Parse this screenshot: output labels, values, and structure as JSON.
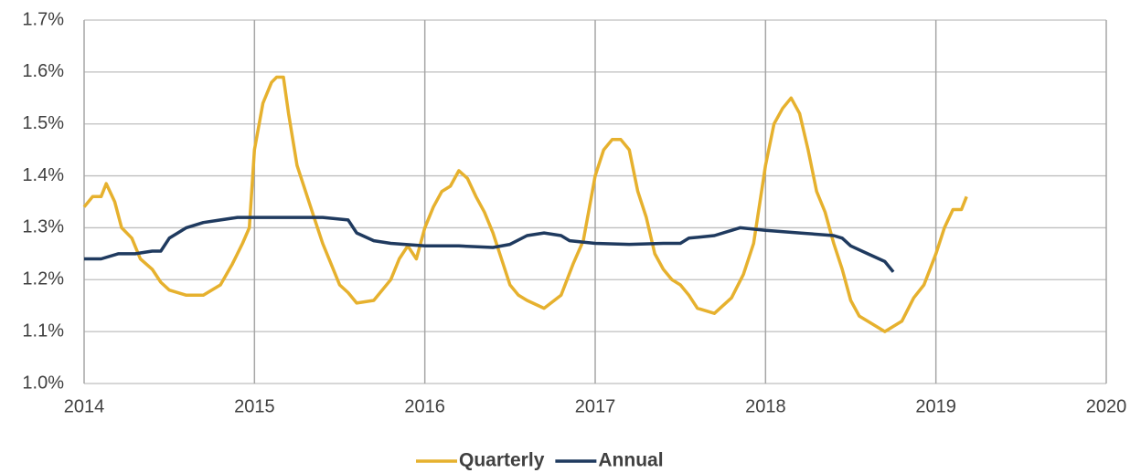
{
  "chart_data": {
    "type": "line",
    "xlim": [
      2014,
      2020
    ],
    "xticks": [
      2014,
      2015,
      2016,
      2017,
      2018,
      2019,
      2020
    ],
    "ylim": [
      1.0,
      1.7
    ],
    "yticks": [
      {
        "value": 1.0,
        "label": "1.0%"
      },
      {
        "value": 1.1,
        "label": "1.1%"
      },
      {
        "value": 1.2,
        "label": "1.2%"
      },
      {
        "value": 1.3,
        "label": "1.3%"
      },
      {
        "value": 1.4,
        "label": "1.4%"
      },
      {
        "value": 1.5,
        "label": "1.5%"
      },
      {
        "value": 1.6,
        "label": "1.6%"
      },
      {
        "value": 1.7,
        "label": "1.7%"
      }
    ],
    "grid": true,
    "legend": "bottom",
    "series": [
      {
        "name": "Quarterly",
        "color": "#e6b12e",
        "x": [
          2014.0,
          2014.05,
          2014.1,
          2014.13,
          2014.18,
          2014.22,
          2014.28,
          2014.33,
          2014.4,
          2014.45,
          2014.5,
          2014.6,
          2014.7,
          2014.8,
          2014.87,
          2014.93,
          2014.97,
          2015.0,
          2015.05,
          2015.1,
          2015.13,
          2015.17,
          2015.2,
          2015.25,
          2015.3,
          2015.35,
          2015.4,
          2015.45,
          2015.5,
          2015.55,
          2015.6,
          2015.7,
          2015.8,
          2015.85,
          2015.9,
          2015.95,
          2016.0,
          2016.05,
          2016.1,
          2016.15,
          2016.2,
          2016.25,
          2016.3,
          2016.35,
          2016.4,
          2016.45,
          2016.5,
          2016.55,
          2016.6,
          2016.7,
          2016.8,
          2016.87,
          2016.93,
          2017.0,
          2017.05,
          2017.1,
          2017.15,
          2017.2,
          2017.25,
          2017.3,
          2017.35,
          2017.4,
          2017.45,
          2017.5,
          2017.55,
          2017.6,
          2017.7,
          2017.8,
          2017.87,
          2017.93,
          2018.0,
          2018.05,
          2018.1,
          2018.15,
          2018.2,
          2018.25,
          2018.3,
          2018.35,
          2018.4,
          2018.45,
          2018.5,
          2018.55,
          2018.6,
          2018.7,
          2018.8,
          2018.87,
          2018.93,
          2019.0,
          2019.05,
          2019.1,
          2019.15,
          2019.18
        ],
        "values": [
          1.34,
          1.36,
          1.36,
          1.385,
          1.35,
          1.3,
          1.28,
          1.24,
          1.22,
          1.195,
          1.18,
          1.17,
          1.17,
          1.19,
          1.23,
          1.27,
          1.3,
          1.45,
          1.54,
          1.58,
          1.59,
          1.59,
          1.52,
          1.42,
          1.37,
          1.32,
          1.27,
          1.23,
          1.19,
          1.175,
          1.155,
          1.16,
          1.2,
          1.24,
          1.265,
          1.24,
          1.3,
          1.34,
          1.37,
          1.38,
          1.41,
          1.395,
          1.36,
          1.33,
          1.29,
          1.24,
          1.19,
          1.17,
          1.16,
          1.145,
          1.17,
          1.23,
          1.275,
          1.4,
          1.45,
          1.47,
          1.47,
          1.45,
          1.37,
          1.32,
          1.25,
          1.22,
          1.2,
          1.19,
          1.17,
          1.145,
          1.135,
          1.165,
          1.21,
          1.27,
          1.42,
          1.5,
          1.53,
          1.55,
          1.52,
          1.45,
          1.37,
          1.33,
          1.27,
          1.22,
          1.16,
          1.13,
          1.12,
          1.1,
          1.12,
          1.165,
          1.19,
          1.25,
          1.3,
          1.335,
          1.335,
          1.36
        ]
      },
      {
        "name": "Annual",
        "color": "#1f3a5f",
        "x": [
          2014.0,
          2014.1,
          2014.2,
          2014.3,
          2014.4,
          2014.45,
          2014.5,
          2014.6,
          2014.7,
          2014.8,
          2014.9,
          2015.0,
          2015.2,
          2015.4,
          2015.55,
          2015.6,
          2015.7,
          2015.8,
          2016.0,
          2016.2,
          2016.4,
          2016.5,
          2016.6,
          2016.7,
          2016.8,
          2016.85,
          2017.0,
          2017.2,
          2017.4,
          2017.5,
          2017.55,
          2017.7,
          2017.8,
          2017.85,
          2018.0,
          2018.2,
          2018.4,
          2018.45,
          2018.5,
          2018.6,
          2018.7,
          2018.75
        ],
        "values": [
          1.24,
          1.24,
          1.25,
          1.25,
          1.255,
          1.255,
          1.28,
          1.3,
          1.31,
          1.315,
          1.32,
          1.32,
          1.32,
          1.32,
          1.315,
          1.29,
          1.275,
          1.27,
          1.265,
          1.265,
          1.262,
          1.268,
          1.285,
          1.29,
          1.285,
          1.275,
          1.27,
          1.268,
          1.27,
          1.27,
          1.28,
          1.285,
          1.295,
          1.3,
          1.295,
          1.29,
          1.285,
          1.28,
          1.265,
          1.25,
          1.235,
          1.215
        ]
      }
    ]
  }
}
